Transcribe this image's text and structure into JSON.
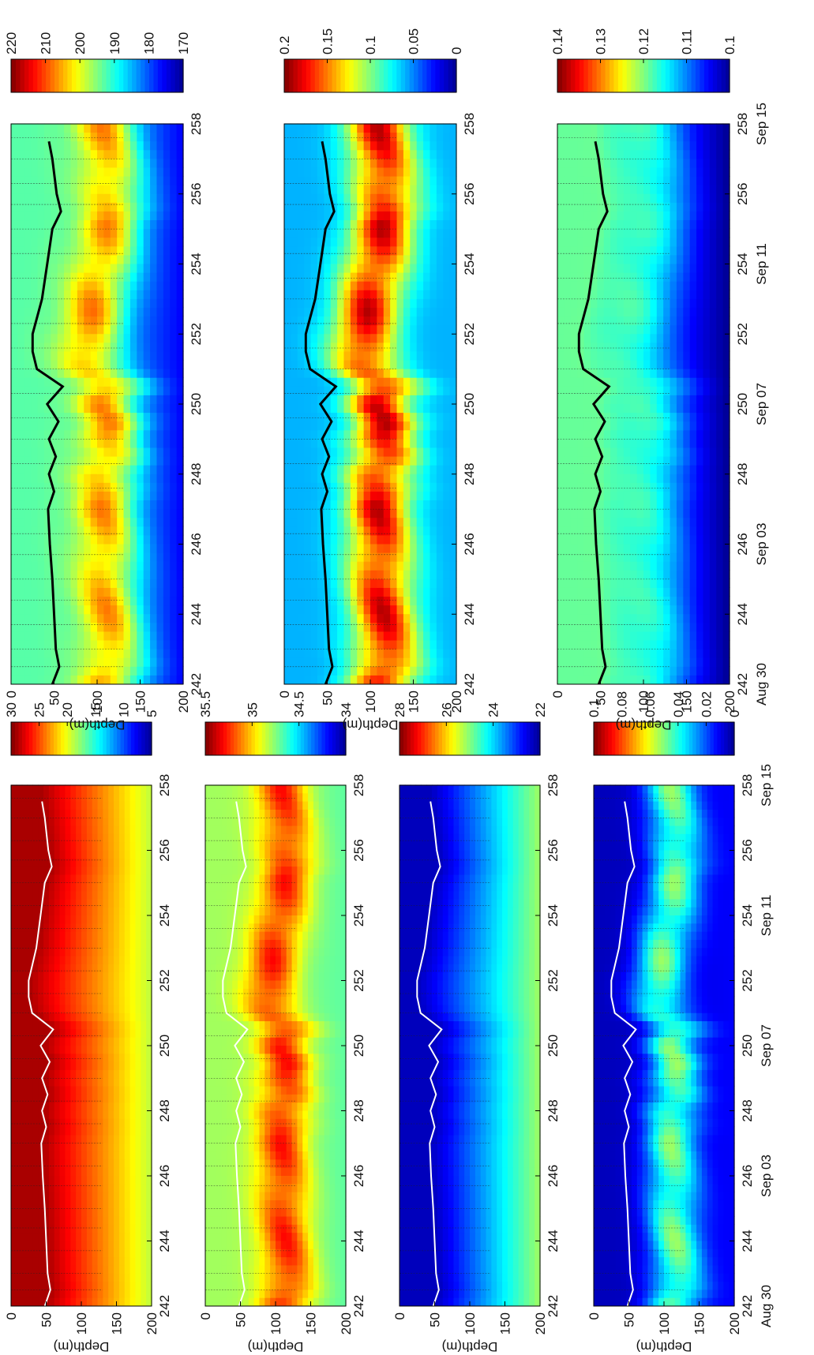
{
  "chart_data": [
    {
      "type": "heatmap",
      "ylabel": "Depth(m)",
      "xlim": [
        242,
        258
      ],
      "ylim": [
        0,
        200
      ],
      "x_ticks": [
        242,
        244,
        246,
        248,
        250,
        252,
        254,
        256,
        258
      ],
      "y_ticks": [
        0,
        50,
        100,
        150,
        200
      ],
      "colorbar": {
        "range": [
          5,
          30
        ],
        "ticks": [
          5,
          10,
          15,
          20,
          25,
          30
        ]
      },
      "line_color": "#ffffff",
      "surface_value": 29,
      "deep_value": 19,
      "mid_contrast": 0
    },
    {
      "type": "heatmap",
      "ylabel": "Depth(m)",
      "xlim": [
        242,
        258
      ],
      "ylim": [
        0,
        200
      ],
      "x_ticks": [
        242,
        244,
        246,
        248,
        250,
        252,
        254,
        256,
        258
      ],
      "y_ticks": [
        0,
        50,
        100,
        150,
        200
      ],
      "colorbar": {
        "range": [
          34,
          35.5
        ],
        "ticks": [
          34,
          34.5,
          35,
          35.5
        ]
      },
      "line_color": "#ffffff",
      "surface_value": 34.8,
      "deep_value": 34.7,
      "mid_contrast": 0.55
    },
    {
      "type": "heatmap",
      "ylabel": "Depth(m)",
      "xlim": [
        242,
        258
      ],
      "ylim": [
        0,
        200
      ],
      "x_ticks": [
        242,
        244,
        246,
        248,
        250,
        252,
        254,
        256,
        258
      ],
      "y_ticks": [
        0,
        50,
        100,
        150,
        200
      ],
      "colorbar": {
        "range": [
          22,
          28
        ],
        "ticks": [
          22,
          24,
          26,
          28
        ]
      },
      "line_color": "#ffffff",
      "surface_value": 22.3,
      "deep_value": 25.2,
      "mid_contrast": 0
    },
    {
      "type": "heatmap",
      "ylabel": "Depth(m)",
      "xlim": [
        242,
        258
      ],
      "ylim": [
        0,
        200
      ],
      "x_ticks": [
        242,
        244,
        246,
        248,
        250,
        252,
        254,
        256,
        258
      ],
      "y_ticks": [
        0,
        50,
        100,
        150,
        200
      ],
      "colorbar": {
        "range": [
          0,
          0.1
        ],
        "ticks": [
          0,
          0.02,
          0.04,
          0.06,
          0.08,
          0.1
        ]
      },
      "line_color": "#ffffff",
      "surface_value": 0.005,
      "deep_value": 0.012,
      "mid_contrast": 0.045
    },
    {
      "type": "heatmap",
      "ylabel": "Depth(m)",
      "xlim": [
        242,
        258
      ],
      "ylim": [
        0,
        200
      ],
      "x_ticks": [
        242,
        244,
        246,
        248,
        250,
        252,
        254,
        256,
        258
      ],
      "y_ticks": [
        0,
        50,
        100,
        150,
        200
      ],
      "colorbar": {
        "range": [
          170,
          220
        ],
        "ticks": [
          170,
          180,
          190,
          200,
          210,
          220
        ]
      },
      "line_color": "#000000",
      "surface_value": 193,
      "deep_value": 176,
      "mid_contrast": 22
    },
    {
      "type": "heatmap",
      "ylabel": "Depth(m)",
      "xlim": [
        242,
        258
      ],
      "ylim": [
        0,
        200
      ],
      "x_ticks": [
        242,
        244,
        246,
        248,
        250,
        252,
        254,
        256,
        258
      ],
      "y_ticks": [
        0,
        50,
        100,
        150,
        200
      ],
      "colorbar": {
        "range": [
          0,
          0.2
        ],
        "ticks": [
          0,
          0.05,
          0.1,
          0.15,
          0.2
        ]
      },
      "line_color": "#000000",
      "surface_value": 0.06,
      "deep_value": 0.06,
      "mid_contrast": 0.13
    },
    {
      "type": "heatmap",
      "ylabel": "Depth(m)",
      "xlim": [
        242,
        258
      ],
      "ylim": [
        0,
        200
      ],
      "x_ticks": [
        242,
        244,
        246,
        248,
        250,
        252,
        254,
        256,
        258
      ],
      "y_ticks": [
        0,
        50,
        100,
        150,
        200
      ],
      "colorbar": {
        "range": [
          0.1,
          0.14
        ],
        "ticks": [
          0.1,
          0.11,
          0.12,
          0.13,
          0.14
        ]
      },
      "line_color": "#000000",
      "surface_value": 0.119,
      "deep_value": 0.1,
      "mid_contrast": 0.006
    }
  ],
  "date_labels": [
    {
      "day": 242,
      "label": "Aug 30"
    },
    {
      "day": 246,
      "label": "Sep 03"
    },
    {
      "day": 250,
      "label": "Sep 07"
    },
    {
      "day": 254,
      "label": "Sep 11"
    },
    {
      "day": 258,
      "label": "Sep 15"
    }
  ],
  "mixed_layer": {
    "x": [
      242,
      242.5,
      243,
      244,
      245,
      246,
      247,
      247.5,
      248,
      248.5,
      249,
      249.5,
      250,
      250.5,
      251,
      251.5,
      252,
      253,
      254,
      255,
      255.5,
      256,
      257,
      257.5
    ],
    "y": [
      48,
      56,
      52,
      50,
      48,
      45,
      43,
      50,
      44,
      52,
      44,
      55,
      42,
      60,
      30,
      25,
      25,
      36,
      42,
      48,
      58,
      53,
      48,
      44
    ]
  },
  "profile_days": [
    242.5,
    243,
    243.7,
    244.4,
    245,
    245.7,
    246.3,
    247,
    247.6,
    248.3,
    249,
    249.6,
    250.3,
    251,
    251.6,
    252.3,
    253,
    253.6,
    254.3,
    255,
    255.7,
    256.3,
    257,
    257.6
  ]
}
